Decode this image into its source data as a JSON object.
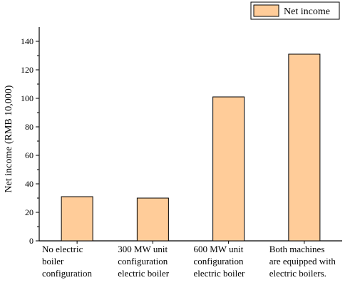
{
  "chart_data": {
    "type": "bar",
    "title": "",
    "xlabel": "",
    "ylabel": "Net income (RMB 10,000)",
    "ylim": [
      0,
      150
    ],
    "yticks": [
      0,
      20,
      40,
      60,
      80,
      100,
      120,
      140
    ],
    "categories": [
      "No electric boiler configuration",
      "300 MW unit configuration electric boiler",
      "600 MW unit configuration electric boiler",
      "Both machines are equipped with electric boilers."
    ],
    "category_lines": [
      "No electric\nboiler\nconfiguration",
      "300 MW unit\nconfiguration\nelectric boiler",
      "600 MW unit\nconfiguration\nelectric boiler",
      "Both machines\nare equipped with\nelectric boilers."
    ],
    "series": [
      {
        "name": "Net income",
        "values": [
          31,
          30,
          101,
          131
        ]
      }
    ],
    "legend": "top-right",
    "grid": false,
    "colors": {
      "bar_fill": "#FFCC99",
      "bar_stroke": "#000000",
      "axis": "#000000"
    }
  }
}
